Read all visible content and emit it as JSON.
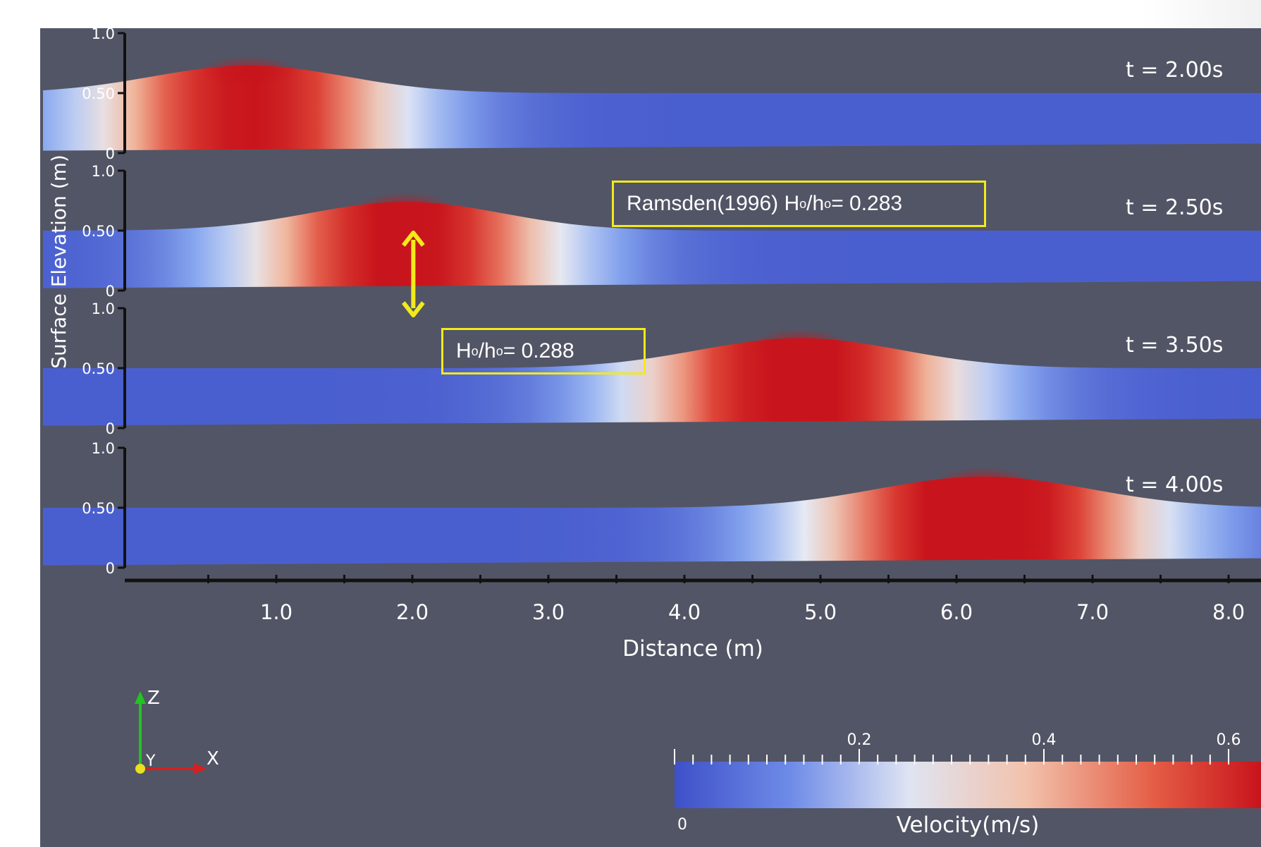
{
  "chart_data": {
    "type": "heatmap",
    "ylabel": "Surface Elevation (m)",
    "xlabel": "Distance (m)",
    "xlim": [
      0,
      8.5
    ],
    "x_ticks": [
      "1.0",
      "2.0",
      "3.0",
      "4.0",
      "5.0",
      "6.0",
      "7.0",
      "8.0"
    ],
    "y_ticks": [
      "0",
      "0.50",
      "1.0"
    ],
    "ylim": [
      0,
      1.0
    ],
    "panels": [
      {
        "time_label": "t =  2.00s",
        "crest_x": 0.8,
        "crest_h": 0.73,
        "still_h": 0.5,
        "amp": 0.23,
        "width": 1.0,
        "peak_v": 0.58
      },
      {
        "time_label": "t =  2.50s",
        "crest_x": 1.95,
        "crest_h": 0.74,
        "still_h": 0.5,
        "amp": 0.24,
        "width": 1.0,
        "peak_v": 0.6
      },
      {
        "time_label": "t = 3.50s",
        "crest_x": 4.85,
        "crest_h": 0.75,
        "still_h": 0.5,
        "amp": 0.25,
        "width": 1.05,
        "peak_v": 0.62
      },
      {
        "time_label": "t = 4.00s",
        "crest_x": 6.2,
        "crest_h": 0.76,
        "still_h": 0.5,
        "amp": 0.26,
        "width": 1.1,
        "peak_v": 0.65
      }
    ],
    "colorbar": {
      "title": "Velocity(m/s)",
      "min_label": "0",
      "tick_labels": [
        "0.2",
        "0.4",
        "0.6"
      ],
      "range": [
        0,
        0.6
      ],
      "colors": [
        "#3e50c8",
        "#88a8f0",
        "#e6eaf4",
        "#f0b49a",
        "#e04a3a",
        "#c8141c"
      ]
    },
    "annotations": {
      "ramsden_prefix": "Ramsden(1996)   H",
      "ramsden_sub1": "o",
      "ramsden_mid": "/h",
      "ramsden_sub2": "o",
      "ramsden_value": " = 0.283",
      "measured_prefix": "H",
      "measured_sub1": "o",
      "measured_mid": "/h",
      "measured_sub2": "o",
      "measured_value": " = 0.288"
    },
    "axes_triad": {
      "z": "Z",
      "y": "Y",
      "x": "X"
    },
    "colors": {
      "background": "#525565",
      "annotation": "#f2ea1a",
      "text": "#ffffff"
    }
  }
}
